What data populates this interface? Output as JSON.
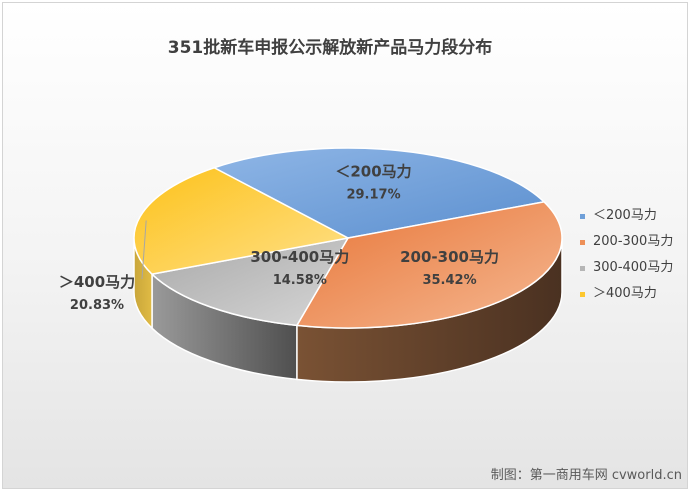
{
  "chart_data": {
    "type": "pie",
    "style": "3d",
    "title": "351批新车申报公示解放新产品马力段分布",
    "categories": [
      "＜200马力",
      "200-300马力",
      "300-400马力",
      "＞400马力"
    ],
    "values": [
      29.17,
      35.42,
      14.58,
      20.83
    ],
    "value_labels": [
      "29.17%",
      "35.42%",
      "14.58%",
      "20.83%"
    ],
    "colors": [
      "#6f9fd8",
      "#ed8f57",
      "#b5b5b5",
      "#fdc72e"
    ],
    "legend_position": "right"
  },
  "legend": [
    {
      "label": "＜200马力",
      "color": "#6f9fd8"
    },
    {
      "label": "200-300马力",
      "color": "#ed8f57"
    },
    {
      "label": "300-400马力",
      "color": "#b5b5b5"
    },
    {
      "label": "＞400马力",
      "color": "#fdc72e"
    }
  ],
  "credit": "制图：第一商用车网 cvworld.cn"
}
